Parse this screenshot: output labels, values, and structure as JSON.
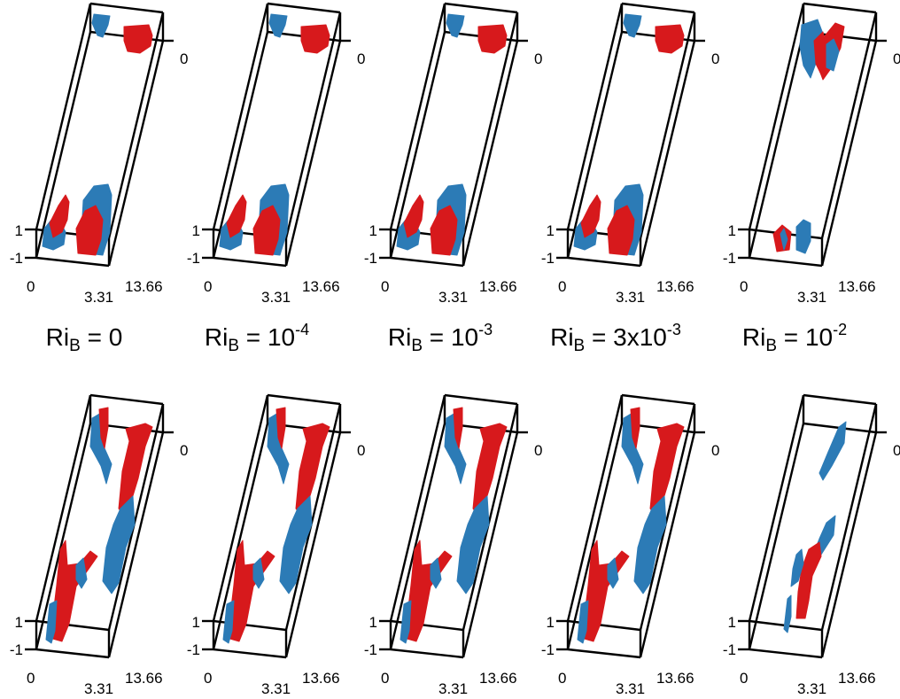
{
  "colors": {
    "positive": "#d7191c",
    "negative": "#2c7bb6",
    "frame": "#000000"
  },
  "axis_ticks": {
    "z_top": "0",
    "y_upper": "1",
    "y_lower": "-1",
    "x_start": "0",
    "x_mid": "3.31",
    "x_end": "13.66"
  },
  "captions": [
    {
      "prefix": "Ri",
      "sub": "B",
      "eq": " = ",
      "base": "0",
      "exp": ""
    },
    {
      "prefix": "Ri",
      "sub": "B",
      "eq": " = ",
      "base": "10",
      "exp": "-4"
    },
    {
      "prefix": "Ri",
      "sub": "B",
      "eq": " = ",
      "base": "10",
      "exp": "-3"
    },
    {
      "prefix": "Ri",
      "sub": "B",
      "eq": " = ",
      "base": "3x10",
      "exp": "-3"
    },
    {
      "prefix": "Ri",
      "sub": "B",
      "eq": " = ",
      "base": "10",
      "exp": "-2"
    }
  ]
}
